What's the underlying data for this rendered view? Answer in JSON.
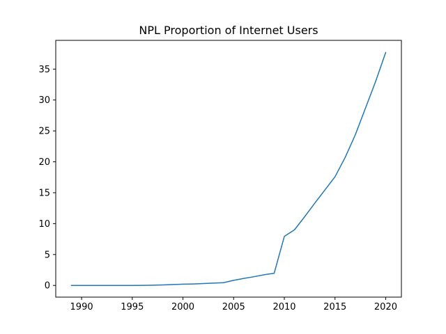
{
  "chart_data": {
    "type": "line",
    "title": "NPL Proportion of Internet Users",
    "xlabel": "",
    "ylabel": "",
    "xlim": [
      1987.45,
      2021.55
    ],
    "ylim": [
      -1.89,
      39.65
    ],
    "xticks": [
      1990,
      1995,
      2000,
      2005,
      2010,
      2015,
      2020
    ],
    "yticks": [
      0,
      5,
      10,
      15,
      20,
      25,
      30,
      35
    ],
    "grid": false,
    "legend": "none",
    "series": [
      {
        "color": "#1f77b4",
        "x": [
          1989,
          1990,
          1991,
          1992,
          1993,
          1994,
          1995,
          1996,
          1997,
          1998,
          1999,
          2000,
          2001,
          2002,
          2003,
          2004,
          2005,
          2006,
          2007,
          2008,
          2009,
          2010,
          2011,
          2012,
          2013,
          2014,
          2015,
          2016,
          2017,
          2018,
          2019,
          2020
        ],
        "y": [
          0,
          0,
          0,
          0,
          0,
          0,
          0,
          0.01,
          0.04,
          0.08,
          0.15,
          0.2,
          0.24,
          0.3,
          0.38,
          0.45,
          0.83,
          1.14,
          1.41,
          1.73,
          1.97,
          7.93,
          9.0,
          11.1,
          13.3,
          15.44,
          17.58,
          20.7,
          24.36,
          28.66,
          32.97,
          37.69
        ]
      }
    ]
  }
}
